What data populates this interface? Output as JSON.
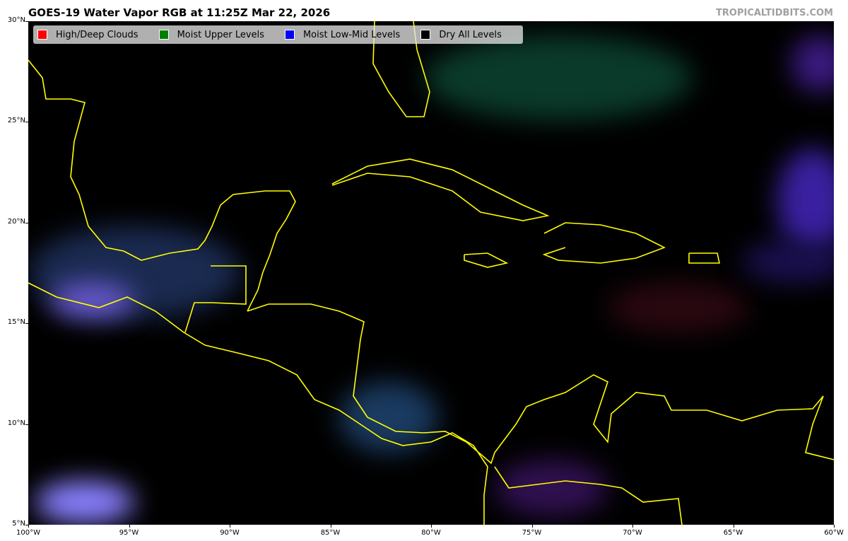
{
  "title": "GOES-19 Water Vapor RGB at 11:25Z Mar 22, 2026",
  "credit": "TROPICALTIDBITS.COM",
  "legend": [
    {
      "label": "High/Deep Clouds",
      "color": "#ff0000"
    },
    {
      "label": "Moist Upper Levels",
      "color": "#008000"
    },
    {
      "label": "Moist Low-Mid Levels",
      "color": "#0000ff"
    },
    {
      "label": "Dry All Levels",
      "color": "#000000"
    }
  ],
  "axes": {
    "lat_labels": [
      "30°N",
      "25°N",
      "20°N",
      "15°N",
      "10°N",
      "5°N"
    ],
    "lon_labels": [
      "100°W",
      "95°W",
      "90°W",
      "85°W",
      "80°W",
      "75°W",
      "70°W",
      "65°W",
      "60°W"
    ],
    "lat_range": [
      5,
      30
    ],
    "lon_range": [
      -100,
      -60
    ]
  },
  "coastline_color": "#ffff00"
}
